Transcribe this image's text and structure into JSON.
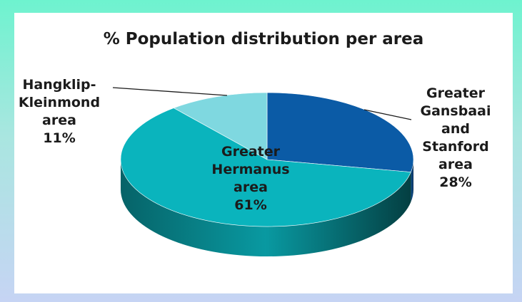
{
  "chart_data": {
    "type": "pie",
    "title": "% Population distribution per area",
    "slices": [
      {
        "label_lines": [
          "Greater",
          "Gansbaai",
          "and",
          "Stanford",
          "area"
        ],
        "percent_text": "28%",
        "value": 28,
        "color": "#0b5ba6"
      },
      {
        "label_lines": [
          "Greater",
          "Hermanus",
          "area"
        ],
        "percent_text": "61%",
        "value": 61,
        "color": "#0ab4bd"
      },
      {
        "label_lines": [
          "Hangklip-",
          "Kleinmond",
          "area"
        ],
        "percent_text": "11%",
        "value": 11,
        "color": "#7fd8e0"
      }
    ],
    "style": "3d",
    "legend": "none"
  }
}
